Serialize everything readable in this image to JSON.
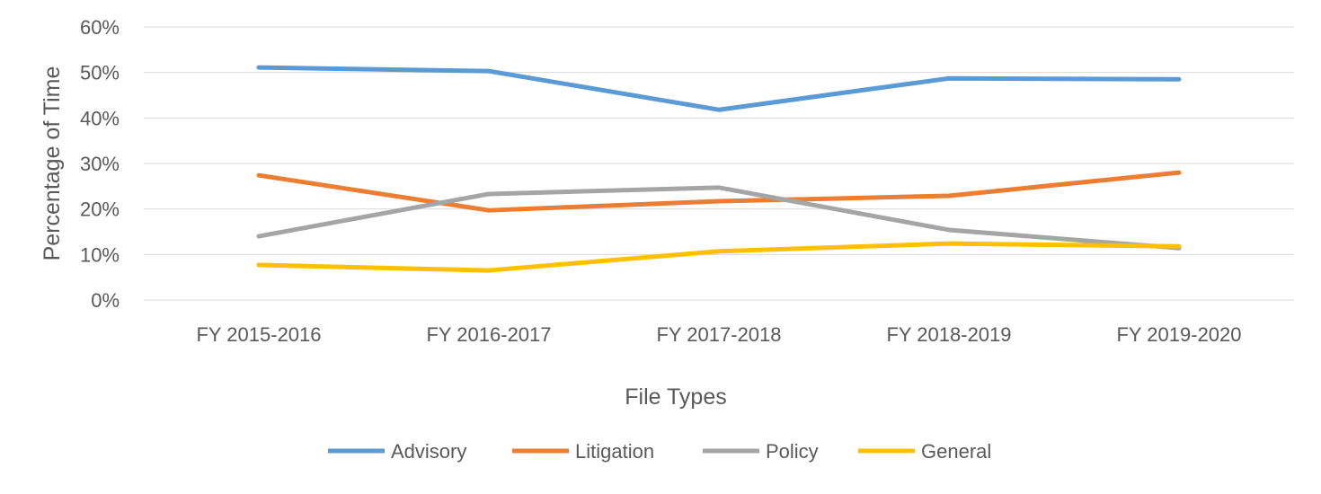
{
  "chart_data": {
    "type": "line",
    "title": "",
    "xlabel": "File Types",
    "ylabel": "Percentage of Time",
    "categories": [
      "FY 2015-2016",
      "FY 2016-2017",
      "FY 2017-2018",
      "FY 2018-2019",
      "FY 2019-2020"
    ],
    "ylim": [
      0,
      60
    ],
    "yticks": [
      "0%",
      "10%",
      "20%",
      "30%",
      "40%",
      "50%",
      "60%"
    ],
    "grid": true,
    "legend": "bottom",
    "series": [
      {
        "name": "Advisory",
        "color": "#5B9BD5",
        "values": [
          51.1,
          50.3,
          41.8,
          48.7,
          48.5
        ]
      },
      {
        "name": "Litigation",
        "color": "#ED7D31",
        "values": [
          27.4,
          19.7,
          21.7,
          22.9,
          28.0
        ]
      },
      {
        "name": "Policy",
        "color": "#A5A5A5",
        "values": [
          14.0,
          23.3,
          24.7,
          15.4,
          11.4
        ]
      },
      {
        "name": "General",
        "color": "#FFC000",
        "values": [
          7.7,
          6.5,
          10.7,
          12.4,
          11.8
        ]
      }
    ]
  }
}
